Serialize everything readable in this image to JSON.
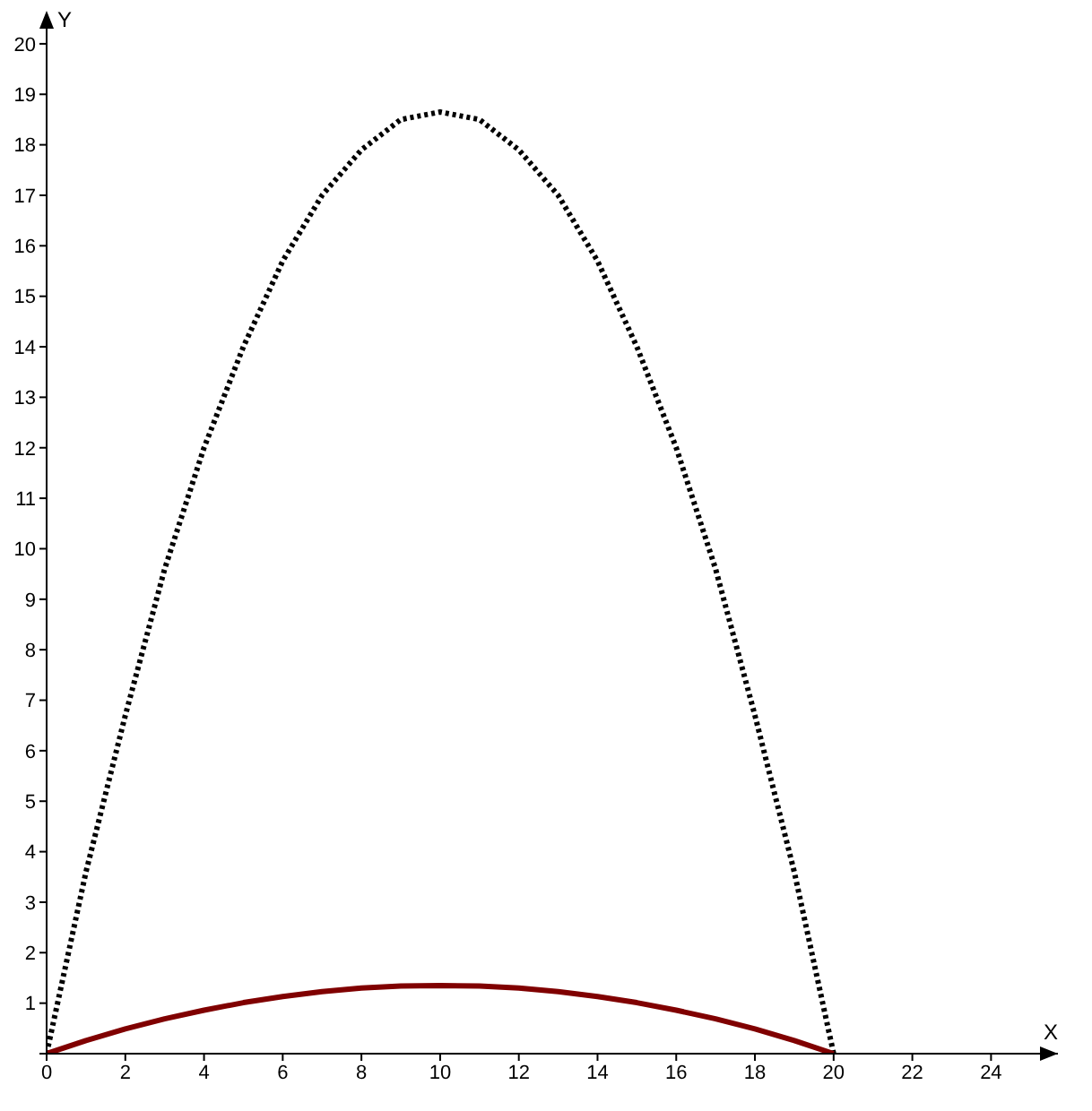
{
  "chart_data": {
    "type": "line",
    "xlabel": "X",
    "ylabel": "Y",
    "x": [
      0,
      1,
      2,
      3,
      4,
      5,
      6,
      7,
      8,
      9,
      10,
      11,
      12,
      13,
      14,
      15,
      16,
      17,
      18,
      19,
      20
    ],
    "series": [
      {
        "color": "#000000",
        "line_style": "dotted",
        "values": [
          0,
          3.6,
          6.7,
          9.6,
          12.0,
          14.0,
          15.7,
          17.0,
          17.9,
          18.5,
          18.65,
          18.5,
          17.9,
          17.0,
          15.7,
          14.0,
          12.0,
          9.6,
          6.7,
          3.6,
          0
        ]
      },
      {
        "color": "#800000",
        "line_style": "solid",
        "values": [
          0,
          0.26,
          0.49,
          0.69,
          0.86,
          1.01,
          1.13,
          1.23,
          1.3,
          1.34,
          1.35,
          1.34,
          1.3,
          1.23,
          1.13,
          1.01,
          0.86,
          0.69,
          0.49,
          0.26,
          0
        ]
      }
    ],
    "xlim": [
      0,
      25.7
    ],
    "ylim": [
      0,
      20.3
    ],
    "xticks": [
      0,
      2,
      4,
      6,
      8,
      10,
      12,
      14,
      16,
      18,
      20,
      22,
      24
    ],
    "yticks": [
      {
        "value": 0,
        "label": null
      },
      1,
      2,
      3,
      4,
      5,
      6,
      7,
      8,
      9,
      10,
      11,
      12,
      13,
      14,
      15,
      16,
      17,
      18,
      19,
      20
    ],
    "grid": false,
    "legend": false,
    "marker": "none"
  }
}
